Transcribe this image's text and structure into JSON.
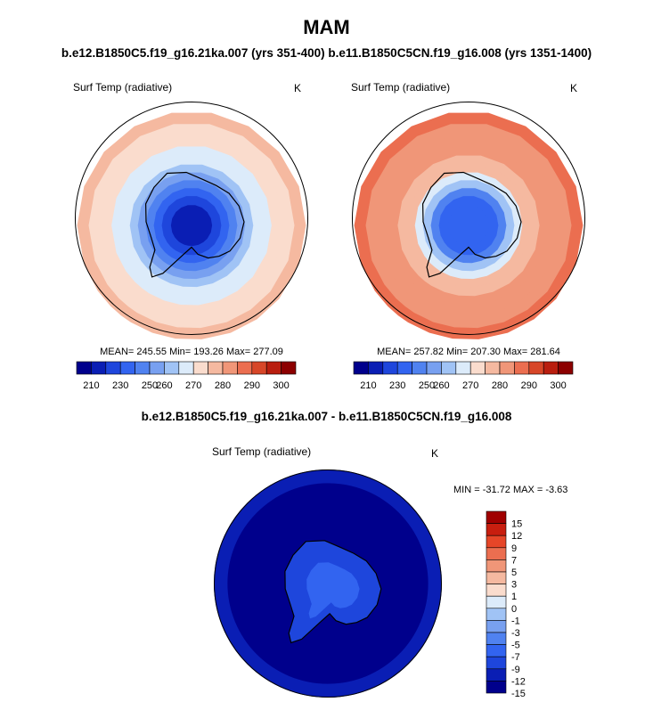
{
  "title": "MAM",
  "subtitle": "b.e12.B1850C5.f19_g16.21ka.007 (yrs 351-400) b.e11.B1850C5CN.f19_g16.008 (yrs 1351-1400)",
  "diff_title": "b.e12.B1850C5.f19_g16.21ka.007 - b.e11.B1850C5CN.f19_g16.008",
  "colors": {
    "abs_palette": [
      "#00008c",
      "#0a1eb4",
      "#1e46dc",
      "#3264f0",
      "#5082f0",
      "#78a0f0",
      "#a0c3f5",
      "#dcebfa",
      "#fadccd",
      "#f5b9a0",
      "#f09678",
      "#eb6e50",
      "#d74628",
      "#b91e0f",
      "#8c0000"
    ],
    "diff_palette": [
      "#00008c",
      "#0a1eb4",
      "#1e46dc",
      "#3264f0",
      "#5082f0",
      "#78a0f0",
      "#a0c3f5",
      "#dcebfa",
      "#fadccd",
      "#f5b9a0",
      "#f09678",
      "#eb6e50",
      "#e64628",
      "#c81e0f",
      "#a00000"
    ]
  },
  "chart_data": [
    {
      "type": "heatmap",
      "projection": "south-polar-stereographic",
      "title": "Surf Temp (radiative)",
      "units": "K",
      "stats": "MEAN= 245.55  Min= 193.26  Max= 277.09",
      "colorbar_ticks": [
        "210",
        "230",
        "250",
        "260",
        "270",
        "280",
        "290",
        "300"
      ],
      "pole_value": 200,
      "ocean_mid_value": 260,
      "edge_value": 272
    },
    {
      "type": "heatmap",
      "projection": "south-polar-stereographic",
      "title": "Surf Temp (radiative)",
      "units": "K",
      "stats": "MEAN= 257.82  Min= 207.30  Max= 281.64",
      "colorbar_ticks": [
        "210",
        "230",
        "250",
        "260",
        "270",
        "280",
        "290",
        "300"
      ],
      "pole_value": 210,
      "ocean_mid_value": 272,
      "edge_value": 281
    },
    {
      "type": "heatmap",
      "projection": "south-polar-stereographic",
      "title": "Surf Temp (radiative)",
      "units": "K",
      "stats": "MIN = -31.72 MAX =  -3.63",
      "colorbar_ticks": [
        "15",
        "12",
        "9",
        "7",
        "5",
        "3",
        "1",
        "0",
        "-1",
        "-3",
        "-5",
        "-7",
        "-9",
        "-12",
        "-15"
      ]
    }
  ]
}
